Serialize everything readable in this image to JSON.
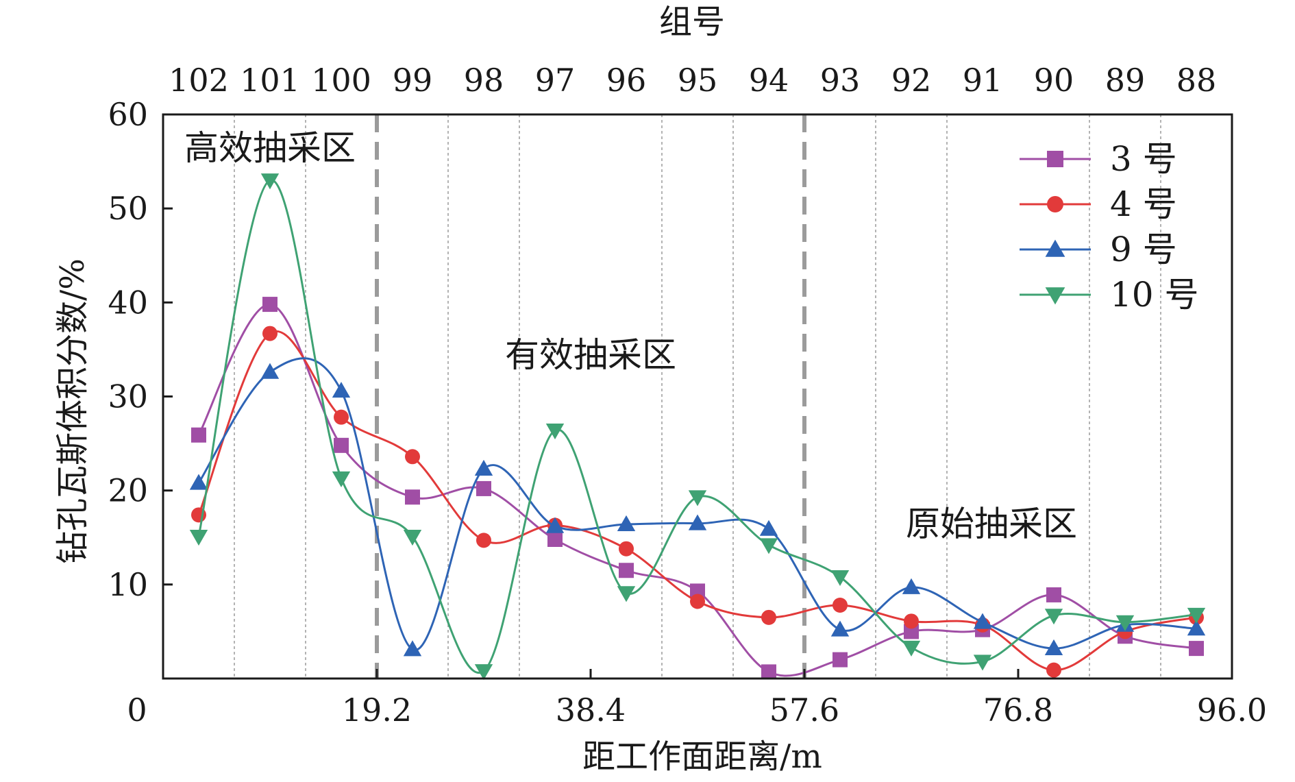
{
  "chart_data": {
    "type": "line",
    "title": "",
    "xlabel": "距工作面距离/m",
    "ylabel": "钻孔瓦斯体积分数/%",
    "top_xlabel": "组号",
    "xlim": [
      0,
      96
    ],
    "ylim": [
      0,
      60
    ],
    "x_ticks": [
      0,
      19.2,
      38.4,
      57.6,
      76.8,
      96.0
    ],
    "x_tick_labels": [
      "0",
      "19.2",
      "38.4",
      "57.6",
      "76.8",
      "96.0"
    ],
    "y_ticks": [
      10,
      20,
      30,
      40,
      50,
      60
    ],
    "y_tick_labels": [
      "10",
      "20",
      "30",
      "40",
      "50",
      "60"
    ],
    "x": [
      3.2,
      9.6,
      16.0,
      22.4,
      28.8,
      35.2,
      41.6,
      48.0,
      54.4,
      60.8,
      67.2,
      73.6,
      80.0,
      86.4,
      92.8
    ],
    "top_tick_labels": [
      "102",
      "101",
      "100",
      "99",
      "98",
      "97",
      "96",
      "95",
      "94",
      "93",
      "92",
      "91",
      "90",
      "89",
      "88"
    ],
    "minor_grid_x": [
      6.4,
      12.8,
      25.6,
      32.0,
      44.8,
      51.2,
      64.0,
      70.4,
      83.2,
      89.6
    ],
    "zone_boundaries": [
      19.2,
      57.6
    ],
    "zones": [
      {
        "label": "高效抽采区",
        "x": 9.6,
        "y": 56.5
      },
      {
        "label": "有效抽采区",
        "x": 38.4,
        "y": 34.5
      },
      {
        "label": "原始抽采区",
        "x": 74.4,
        "y": 16.5
      }
    ],
    "series": [
      {
        "name": "3 号",
        "color": "#A04EA5",
        "marker": "square",
        "values": [
          25.9,
          39.8,
          24.8,
          19.3,
          20.2,
          14.8,
          11.5,
          9.3,
          0.7,
          2.0,
          5.0,
          5.2,
          8.9,
          4.5,
          3.2
        ]
      },
      {
        "name": "4 号",
        "color": "#E23A3A",
        "marker": "circle",
        "values": [
          17.4,
          36.7,
          27.8,
          23.6,
          14.7,
          16.3,
          13.8,
          8.2,
          6.5,
          7.8,
          6.1,
          5.7,
          0.9,
          5.0,
          6.5
        ]
      },
      {
        "name": "9 号",
        "color": "#2E64B5",
        "marker": "triangle-up",
        "values": [
          20.8,
          32.6,
          30.6,
          3.1,
          22.3,
          16.2,
          16.4,
          16.5,
          15.9,
          5.2,
          9.7,
          6.0,
          3.2,
          5.7,
          5.3
        ]
      },
      {
        "name": "10 号",
        "color": "#3FA273",
        "marker": "triangle-down",
        "values": [
          15.1,
          53.0,
          21.3,
          15.1,
          0.8,
          26.4,
          9.1,
          19.3,
          14.2,
          10.8,
          3.3,
          1.8,
          6.7,
          6.0,
          6.8
        ]
      }
    ]
  }
}
